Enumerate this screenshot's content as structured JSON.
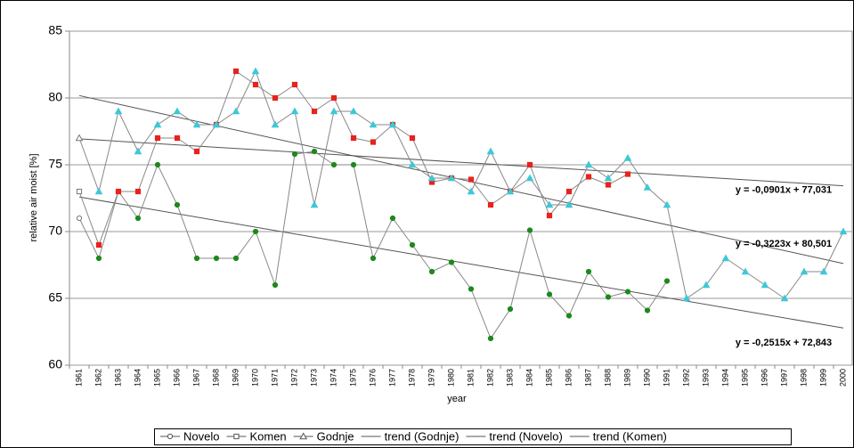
{
  "chart_data": {
    "type": "line",
    "x_label": "year",
    "y_label": "relative air moist [%]",
    "categories": [
      "1961",
      "1962",
      "1963",
      "1964",
      "1965",
      "1966",
      "1967",
      "1968",
      "1969",
      "1970",
      "1971",
      "1972",
      "1973",
      "1974",
      "1975",
      "1976",
      "1977",
      "1978",
      "1979",
      "1980",
      "1981",
      "1982",
      "1983",
      "1984",
      "1985",
      "1986",
      "1987",
      "1988",
      "1989",
      "1990",
      "1991",
      "1992",
      "1993",
      "1994",
      "1995",
      "1996",
      "1997",
      "1998",
      "1999",
      "2000"
    ],
    "ylim": [
      60,
      85
    ],
    "yticks": [
      60,
      65,
      70,
      75,
      80,
      85
    ],
    "grid": true,
    "series": [
      {
        "name": "Novelo",
        "color": "#1a8a1a",
        "marker": "circle",
        "values": [
          71,
          68,
          73,
          71,
          75,
          72,
          68,
          68,
          68,
          70,
          66,
          75.8,
          76,
          75,
          75,
          68,
          71,
          69,
          67,
          67.7,
          65.7,
          62,
          64.2,
          70.1,
          65.3,
          63.7,
          67,
          65.1,
          65.5,
          64.1,
          66.3,
          null,
          null,
          null,
          null,
          null,
          null,
          null,
          null,
          null
        ]
      },
      {
        "name": "Komen",
        "color": "#e8221c",
        "marker": "square",
        "values": [
          73,
          69,
          73,
          73,
          77,
          77,
          76,
          78,
          82,
          81,
          80,
          81,
          79,
          80,
          77,
          76.7,
          78,
          77,
          73.7,
          74,
          73.9,
          72,
          73,
          75,
          71.2,
          73,
          74.1,
          73.5,
          74.3,
          null,
          null,
          null,
          null,
          null,
          null,
          null,
          null,
          null,
          null,
          null
        ]
      },
      {
        "name": "Godnje",
        "color": "#3cc8d8",
        "marker": "triangle",
        "values": [
          77,
          73,
          79,
          76,
          78,
          79,
          78,
          78,
          79,
          82,
          78,
          79,
          72,
          79,
          79,
          78,
          78,
          75,
          74,
          74,
          73,
          76,
          73,
          74,
          72,
          72,
          75,
          74,
          75.5,
          73.3,
          72,
          65,
          66,
          68,
          67,
          66,
          65,
          67,
          67,
          70
        ]
      }
    ],
    "trendlines": [
      {
        "name": "trend (Godnje)",
        "equation": "y = -0,0901x + 77,031",
        "slope": -0.0901,
        "intercept": 77.031
      },
      {
        "name": "trend (Novelo)",
        "equation": "y = -0,2515x + 72,843",
        "slope": -0.2515,
        "intercept": 72.843
      },
      {
        "name": "trend (Komen)",
        "equation": "y = -0,3223x + 80,501",
        "slope": -0.3223,
        "intercept": 80.501
      }
    ]
  }
}
